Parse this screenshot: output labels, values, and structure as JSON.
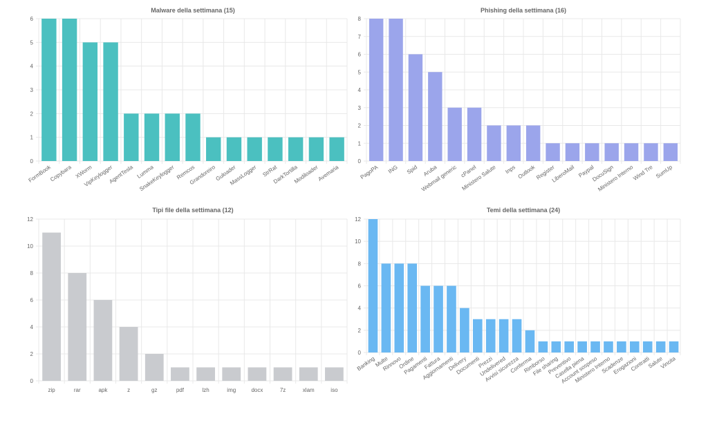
{
  "chart_data": [
    {
      "type": "bar",
      "title": "Malware della settimana (15)",
      "categories": [
        "FormBook",
        "Copybara",
        "XWorm",
        "VipKeylogger",
        "AgentTesla",
        "Lumma",
        "SnakeKeylogger",
        "Remcos",
        "Grandoreiro",
        "Guloader",
        "MassLogger",
        "StrRat",
        "DarkTortilla",
        "Modiloader",
        "Avemaria"
      ],
      "values": [
        6,
        6,
        5,
        5,
        2,
        2,
        2,
        2,
        1,
        1,
        1,
        1,
        1,
        1,
        1
      ],
      "ylim": [
        0,
        6
      ],
      "yticks": [
        0,
        1,
        2,
        3,
        4,
        5,
        6
      ],
      "color": "#4bc0c0",
      "rotate_labels": true,
      "grid": true
    },
    {
      "type": "bar",
      "title": "Phishing della settimana (16)",
      "categories": [
        "PagoPA",
        "ING",
        "Spid",
        "Aruba",
        "Webmail generic",
        "cPanel",
        "Ministero Salute",
        "Inps",
        "Outlook",
        "Register",
        "LiberoMail",
        "Paypal",
        "DocuSign",
        "Ministero Interno",
        "Wind Tre",
        "SumUp"
      ],
      "values": [
        8,
        8,
        6,
        5,
        3,
        3,
        2,
        2,
        2,
        1,
        1,
        1,
        1,
        1,
        1,
        1
      ],
      "ylim": [
        0,
        8
      ],
      "yticks": [
        0,
        1,
        2,
        3,
        4,
        5,
        6,
        7,
        8
      ],
      "color": "#9ba5eb",
      "rotate_labels": true,
      "grid": true
    },
    {
      "type": "bar",
      "title": "Tipi file della settimana (12)",
      "categories": [
        "zip",
        "rar",
        "apk",
        "z",
        "gz",
        "pdf",
        "lzh",
        "img",
        "docx",
        "7z",
        "xlam",
        "iso"
      ],
      "values": [
        11,
        8,
        6,
        4,
        2,
        1,
        1,
        1,
        1,
        1,
        1,
        1
      ],
      "ylim": [
        0,
        12
      ],
      "yticks": [
        0,
        2,
        4,
        6,
        8,
        10,
        12
      ],
      "color": "#c9cbcf",
      "rotate_labels": false,
      "grid": true
    },
    {
      "type": "bar",
      "title": "Temi della settimana (24)",
      "categories": [
        "Banking",
        "Multe",
        "Rinnovo",
        "Ordine",
        "Pagamenti",
        "Fattura",
        "Aggiornamenti",
        "Delivery",
        "Documenti",
        "Prezzi",
        "Undelivered",
        "Avvisi sicurezza",
        "Conferma",
        "Rimborso",
        "File sharing",
        "Preventivo",
        "Casella piena",
        "Account sospeso",
        "Ministero Interno",
        "Scadenze",
        "Erogazioni",
        "Contratti",
        "Salute",
        "Vincita"
      ],
      "values": [
        12,
        8,
        8,
        8,
        6,
        6,
        6,
        4,
        3,
        3,
        3,
        3,
        2,
        1,
        1,
        1,
        1,
        1,
        1,
        1,
        1,
        1,
        1,
        1
      ],
      "ylim": [
        0,
        12
      ],
      "yticks": [
        0,
        2,
        4,
        6,
        8,
        10,
        12
      ],
      "color": "#6ab8f2",
      "rotate_labels": true,
      "grid": true
    }
  ]
}
